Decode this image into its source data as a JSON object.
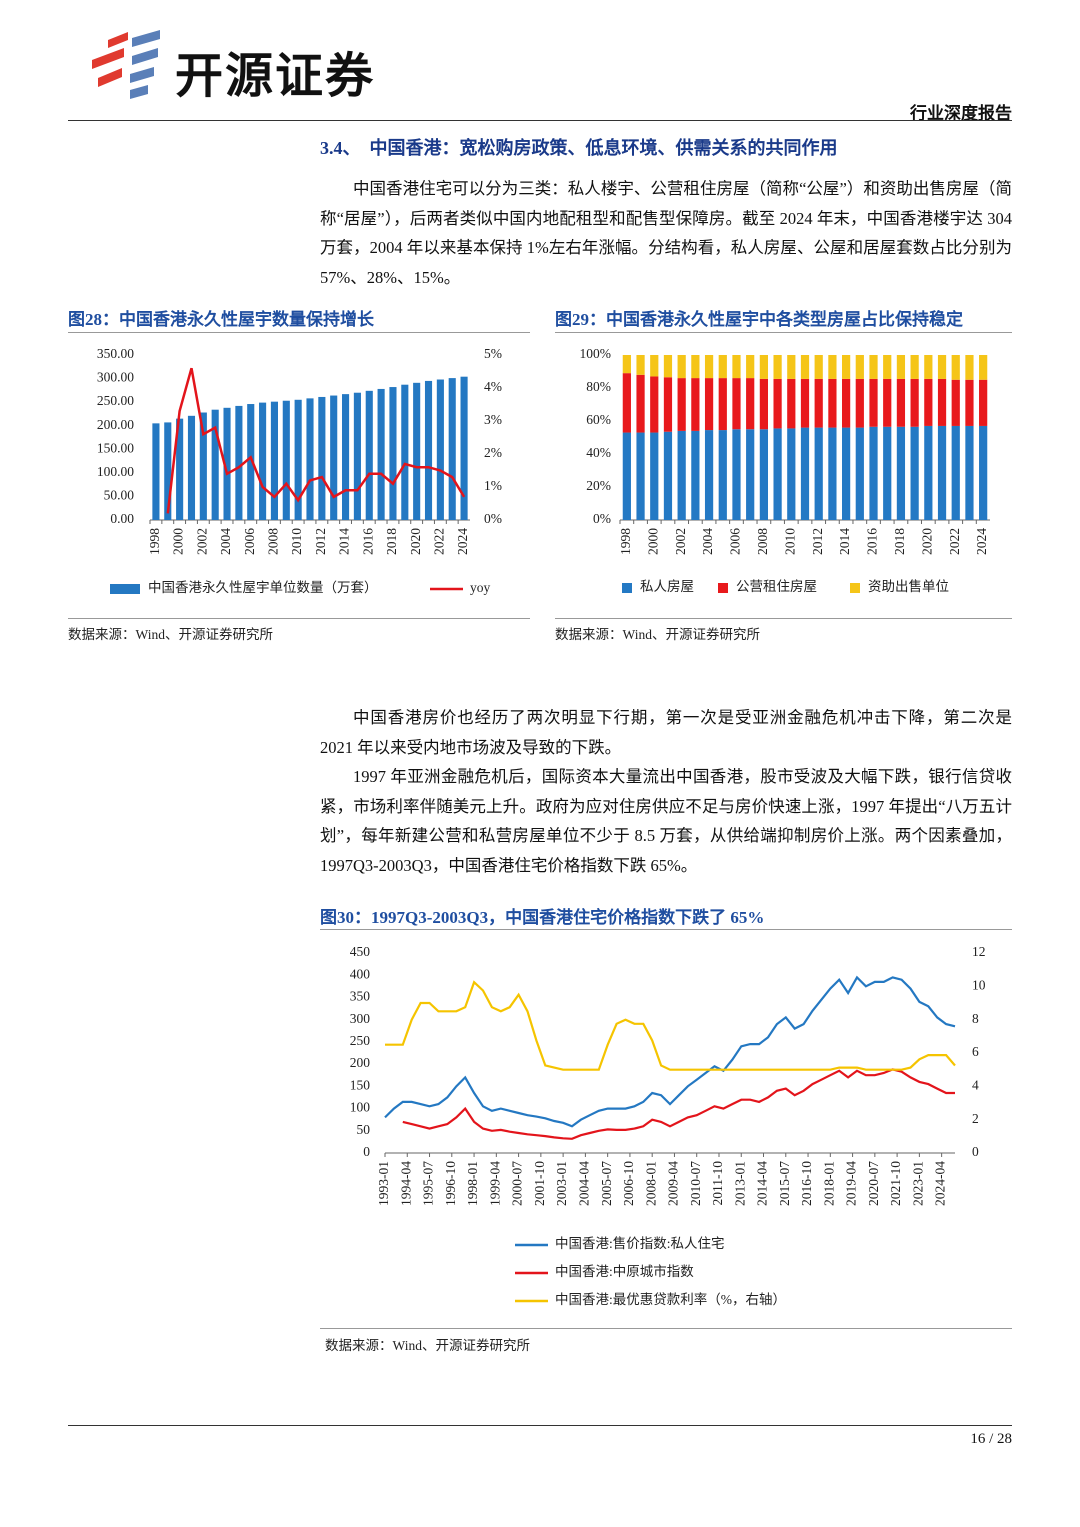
{
  "header": {
    "company": "开源证券",
    "report_type": "行业深度报告"
  },
  "section": {
    "number": "3.4、",
    "title": "中国香港：宽松购房政策、低息环境、供需关系的共同作用"
  },
  "paragraphs": [
    "中国香港住宅可以分为三类：私人楼宇、公营租住房屋（简称“公屋”）和资助出售房屋（简称“居屋”），后两者类似中国内地配租型和配售型保障房。截至 2024 年末，中国香港楼宇达 304 万套，2004 年以来基本保持 1%左右年涨幅。分结构看，私人房屋、公屋和居屋套数占比分别为 57%、28%、15%。",
    "中国香港房价也经历了两次明显下行期，第一次是受亚洲金融危机冲击下降，第二次是 2021 年以来受内地市场波及导致的下跌。",
    "1997 年亚洲金融危机后，国际资本大量流出中国香港，股市受波及大幅下跌，银行信贷收紧，市场利率伴随美元上升。政府为应对住房供应不足与房价快速上涨，1997 年提出“八万五计划”，每年新建公营和私营房屋单位不少于 8.5 万套，从供给端抑制房价上涨。两个因素叠加，1997Q3-2003Q3，中国香港住宅价格指数下跌 65%。"
  ],
  "chart_data": [
    {
      "type": "bar",
      "title": "图28：中国香港永久性屋宇数量保持增长",
      "source": "数据来源：Wind、开源证券研究所",
      "categories": [
        "1998",
        null,
        "2000",
        null,
        "2002",
        null,
        "2004",
        null,
        "2006",
        null,
        "2008",
        null,
        "2010",
        null,
        "2012",
        null,
        "2014",
        null,
        "2016",
        null,
        "2018",
        null,
        "2020",
        null,
        "2022",
        null,
        "2024"
      ],
      "series": [
        {
          "name": "中国香港永久性屋宇单位数量（万套）",
          "color": "#2478c2",
          "values": [
            205,
            207,
            215,
            221,
            228,
            234,
            238,
            242,
            246,
            249,
            251,
            253,
            255,
            258,
            261,
            264,
            267,
            270,
            274,
            278,
            282,
            287,
            291,
            295,
            298,
            301,
            304
          ]
        },
        {
          "name": "yoy",
          "type": "line",
          "axis": "y2",
          "color": "#e3141b",
          "values": [
            null,
            0.2,
            3.3,
            4.6,
            2.6,
            2.8,
            1.4,
            1.6,
            1.9,
            1.0,
            0.7,
            1.1,
            0.6,
            1.2,
            1.3,
            0.7,
            0.9,
            0.9,
            1.4,
            1.4,
            1.1,
            1.7,
            1.6,
            1.6,
            1.5,
            1.3,
            0.7
          ]
        }
      ],
      "ylim": [
        0,
        350
      ],
      "yticks": [
        {
          "value": 0,
          "label": "0.00"
        },
        {
          "value": 50,
          "label": "50.00"
        },
        {
          "value": 100,
          "label": "100.00"
        },
        {
          "value": 150,
          "label": "150.00"
        },
        {
          "value": 200,
          "label": "200.00"
        },
        {
          "value": 250,
          "label": "250.00"
        },
        {
          "value": 300,
          "label": "300.00"
        },
        {
          "value": 350,
          "label": "350.00"
        }
      ],
      "y2lim": [
        0,
        5
      ],
      "y2ticks": [
        {
          "value": 0,
          "label": "0%"
        },
        {
          "value": 1,
          "label": "1%"
        },
        {
          "value": 2,
          "label": "2%"
        },
        {
          "value": 3,
          "label": "3%"
        },
        {
          "value": 4,
          "label": "4%"
        },
        {
          "value": 5,
          "label": "5%"
        }
      ],
      "grid": false,
      "legend": "bottom"
    },
    {
      "type": "bar",
      "stacked": true,
      "title": "图29：中国香港永久性屋宇中各类型房屋占比保持稳定",
      "source": "数据来源：Wind、开源证券研究所",
      "categories": [
        "1998",
        null,
        "2000",
        null,
        "2002",
        null,
        "2004",
        null,
        "2006",
        null,
        "2008",
        null,
        "2010",
        null,
        "2012",
        null,
        "2014",
        null,
        "2016",
        null,
        "2018",
        null,
        "2020",
        null,
        "2022",
        null,
        "2024"
      ],
      "series": [
        {
          "name": "私人房屋",
          "color": "#2479c4",
          "values": [
            53,
            53,
            53,
            53.5,
            54,
            54,
            54.5,
            54.5,
            55,
            55,
            55,
            55.5,
            55.5,
            56,
            56,
            56,
            56,
            56,
            56.5,
            56.5,
            56.5,
            56.5,
            57,
            57,
            57,
            57,
            57
          ]
        },
        {
          "name": "公营租住房屋",
          "color": "#e8191c",
          "values": [
            36,
            35,
            34,
            33,
            32,
            32,
            31.5,
            31.5,
            31,
            31,
            30.5,
            30,
            30,
            29.5,
            29.5,
            29.5,
            29.5,
            29.5,
            29,
            29,
            29,
            29,
            28.5,
            28.5,
            28,
            28,
            28
          ]
        },
        {
          "name": "资助出售单位",
          "color": "#f5c518",
          "values": [
            11,
            12,
            13,
            13.5,
            14,
            14,
            14,
            14,
            14,
            14,
            14.5,
            14.5,
            14.5,
            14.5,
            14.5,
            14.5,
            14.5,
            14.5,
            14.5,
            14.5,
            14.5,
            14.5,
            14.5,
            14.5,
            15,
            15,
            15
          ]
        }
      ],
      "ylim": [
        0,
        100
      ],
      "yticks": [
        {
          "value": 0,
          "label": "0%"
        },
        {
          "value": 20,
          "label": "20%"
        },
        {
          "value": 40,
          "label": "40%"
        },
        {
          "value": 60,
          "label": "60%"
        },
        {
          "value": 80,
          "label": "80%"
        },
        {
          "value": 100,
          "label": "100%"
        }
      ],
      "grid": false,
      "legend": "bottom"
    },
    {
      "type": "line",
      "title": "图30：1997Q3-2003Q3，中国香港住宅价格指数下跌了 65%",
      "source": "数据来源：Wind、开源证券研究所",
      "x": [
        "1993-01",
        "1993-07",
        "1994-01",
        "1994-07",
        "1995-01",
        "1995-07",
        "1996-01",
        "1996-07",
        "1997-01",
        "1997-07",
        "1998-01",
        "1998-07",
        "1999-01",
        "1999-07",
        "2000-01",
        "2000-07",
        "2001-01",
        "2001-07",
        "2002-01",
        "2002-07",
        "2003-01",
        "2003-07",
        "2004-01",
        "2004-07",
        "2005-01",
        "2005-07",
        "2006-01",
        "2006-07",
        "2007-01",
        "2007-07",
        "2008-01",
        "2008-07",
        "2009-01",
        "2009-07",
        "2010-01",
        "2010-07",
        "2011-01",
        "2011-07",
        "2012-01",
        "2012-07",
        "2013-01",
        "2013-07",
        "2014-01",
        "2014-07",
        "2015-01",
        "2015-07",
        "2016-01",
        "2016-07",
        "2017-01",
        "2017-07",
        "2018-01",
        "2018-07",
        "2019-01",
        "2019-07",
        "2020-01",
        "2020-07",
        "2021-01",
        "2021-07",
        "2022-01",
        "2022-07",
        "2023-01",
        "2023-07",
        "2024-01",
        "2024-07",
        "2025-01"
      ],
      "xticks": [
        "1993-01",
        "1994-04",
        "1995-07",
        "1996-10",
        "1998-01",
        "1999-04",
        "2000-07",
        "2001-10",
        "2003-01",
        "2004-04",
        "2005-07",
        "2006-10",
        "2008-01",
        "2009-04",
        "2010-07",
        "2011-10",
        "2013-01",
        "2014-04",
        "2015-07",
        "2016-10",
        "2018-01",
        "2019-04",
        "2020-07",
        "2021-10",
        "2023-01",
        "2024-04"
      ],
      "series": [
        {
          "name": "中国香港:售价指数:私人住宅",
          "color": "#2478c2",
          "values": [
            80,
            100,
            115,
            115,
            110,
            105,
            110,
            125,
            150,
            170,
            135,
            105,
            95,
            100,
            95,
            90,
            85,
            82,
            78,
            72,
            68,
            60,
            75,
            85,
            95,
            100,
            100,
            100,
            105,
            115,
            135,
            130,
            110,
            130,
            150,
            165,
            180,
            195,
            185,
            210,
            240,
            245,
            245,
            260,
            290,
            305,
            280,
            290,
            320,
            345,
            370,
            390,
            360,
            395,
            375,
            385,
            385,
            395,
            390,
            370,
            340,
            330,
            305,
            290,
            285
          ]
        },
        {
          "name": "中国香港:中原城市指数",
          "color": "#e3141b",
          "values": [
            null,
            null,
            70,
            65,
            60,
            55,
            60,
            65,
            80,
            100,
            70,
            55,
            50,
            52,
            48,
            45,
            42,
            40,
            38,
            35,
            33,
            32,
            40,
            45,
            50,
            53,
            52,
            52,
            55,
            60,
            75,
            70,
            60,
            70,
            80,
            85,
            95,
            105,
            100,
            110,
            120,
            120,
            115,
            125,
            140,
            145,
            130,
            140,
            155,
            165,
            175,
            185,
            170,
            185,
            175,
            175,
            180,
            188,
            183,
            170,
            160,
            155,
            145,
            135,
            135
          ]
        },
        {
          "name": "中国香港:最优惠贷款利率（%，右轴）",
          "axis": "y2",
          "color": "#f5c400",
          "values": [
            6.5,
            6.5,
            6.5,
            8.0,
            9.0,
            9.0,
            8.5,
            8.5,
            8.5,
            8.75,
            10.25,
            9.75,
            8.75,
            8.5,
            8.75,
            9.5,
            8.5,
            6.75,
            5.25,
            5.125,
            5.0,
            5.0,
            5.0,
            5.0,
            5.0,
            6.5,
            7.75,
            8.0,
            7.75,
            7.75,
            6.75,
            5.25,
            5.0,
            5.0,
            5.0,
            5.0,
            5.0,
            5.0,
            5.0,
            5.0,
            5.0,
            5.0,
            5.0,
            5.0,
            5.0,
            5.0,
            5.0,
            5.0,
            5.0,
            5.0,
            5.0,
            5.125,
            5.125,
            5.125,
            5.0,
            5.0,
            5.0,
            5.0,
            5.0,
            5.125,
            5.625,
            5.875,
            5.875,
            5.875,
            5.25
          ]
        }
      ],
      "ylim": [
        0,
        450
      ],
      "yticks": [
        0,
        50,
        100,
        150,
        200,
        250,
        300,
        350,
        400,
        450
      ],
      "y2lim": [
        0,
        12
      ],
      "y2ticks": [
        0,
        2,
        4,
        6,
        8,
        10,
        12
      ],
      "grid": false,
      "legend": "bottom"
    }
  ],
  "footer": {
    "page": "16 / 28"
  }
}
